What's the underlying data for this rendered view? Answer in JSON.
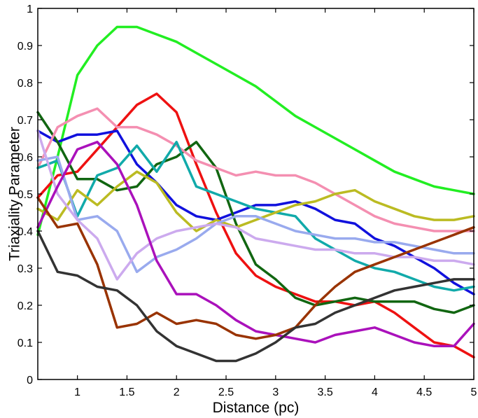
{
  "chart_data": {
    "type": "line",
    "title": "",
    "xlabel": "Distance (pc)",
    "ylabel": "Triaxiality Parameter",
    "xlim": [
      0.6,
      5
    ],
    "ylim": [
      0,
      1
    ],
    "grid": false,
    "x_ticks": [
      1,
      1.5,
      2,
      2.5,
      3,
      3.5,
      4,
      4.5,
      5
    ],
    "x_tick_labels": [
      "1",
      "1.5",
      "2",
      "2.5",
      "3",
      "3.5",
      "4",
      "4.5",
      "5"
    ],
    "y_ticks": [
      0,
      0.1,
      0.2,
      0.3,
      0.4,
      0.5,
      0.6,
      0.7,
      0.8,
      0.9,
      1
    ],
    "y_tick_labels": [
      "0",
      "0.1",
      "0.2",
      "0.3",
      "0.4",
      "0.5",
      "0.6",
      "0.7",
      "0.8",
      "0.9",
      "1"
    ],
    "x": [
      0.6,
      0.8,
      1.0,
      1.2,
      1.4,
      1.6,
      1.8,
      2.0,
      2.2,
      2.4,
      2.6,
      2.8,
      3.0,
      3.2,
      3.4,
      3.6,
      3.8,
      4.0,
      4.2,
      4.4,
      4.6,
      4.8,
      5.0
    ],
    "series": [
      {
        "name": "green",
        "color": "#22ee22",
        "values": [
          0.39,
          0.6,
          0.82,
          0.9,
          0.95,
          0.95,
          0.93,
          0.91,
          0.88,
          0.85,
          0.82,
          0.79,
          0.75,
          0.71,
          0.68,
          0.65,
          0.62,
          0.59,
          0.56,
          0.54,
          0.52,
          0.51,
          0.5
        ]
      },
      {
        "name": "red",
        "color": "#ee1111",
        "values": [
          0.49,
          0.55,
          0.56,
          0.62,
          0.68,
          0.74,
          0.77,
          0.72,
          0.58,
          0.45,
          0.34,
          0.28,
          0.25,
          0.23,
          0.21,
          0.21,
          0.2,
          0.21,
          0.18,
          0.14,
          0.1,
          0.09,
          0.06
        ]
      },
      {
        "name": "blue",
        "color": "#1111dd",
        "values": [
          0.67,
          0.64,
          0.66,
          0.66,
          0.67,
          0.58,
          0.53,
          0.47,
          0.44,
          0.43,
          0.45,
          0.47,
          0.47,
          0.48,
          0.46,
          0.43,
          0.42,
          0.38,
          0.36,
          0.33,
          0.3,
          0.26,
          0.23
        ]
      },
      {
        "name": "dark green",
        "color": "#116611",
        "values": [
          0.72,
          0.64,
          0.54,
          0.54,
          0.51,
          0.52,
          0.58,
          0.6,
          0.64,
          0.57,
          0.42,
          0.31,
          0.27,
          0.22,
          0.2,
          0.21,
          0.22,
          0.21,
          0.21,
          0.21,
          0.19,
          0.18,
          0.2
        ]
      },
      {
        "name": "pink",
        "color": "#f48fb1",
        "values": [
          0.57,
          0.68,
          0.71,
          0.73,
          0.68,
          0.68,
          0.66,
          0.63,
          0.59,
          0.57,
          0.55,
          0.56,
          0.55,
          0.55,
          0.53,
          0.5,
          0.47,
          0.44,
          0.42,
          0.41,
          0.4,
          0.4,
          0.4
        ]
      },
      {
        "name": "cyan",
        "color": "#11aaaa",
        "values": [
          0.57,
          0.59,
          0.44,
          0.55,
          0.57,
          0.63,
          0.56,
          0.64,
          0.52,
          0.5,
          0.48,
          0.46,
          0.45,
          0.44,
          0.38,
          0.35,
          0.32,
          0.3,
          0.29,
          0.27,
          0.25,
          0.24,
          0.25
        ]
      },
      {
        "name": "olive",
        "color": "#bbbb22",
        "values": [
          0.46,
          0.43,
          0.51,
          0.47,
          0.52,
          0.56,
          0.53,
          0.45,
          0.4,
          0.43,
          0.41,
          0.43,
          0.45,
          0.47,
          0.48,
          0.5,
          0.51,
          0.48,
          0.46,
          0.44,
          0.43,
          0.43,
          0.44
        ]
      },
      {
        "name": "lavender",
        "color": "#99aaee",
        "values": [
          0.59,
          0.6,
          0.43,
          0.44,
          0.4,
          0.29,
          0.33,
          0.35,
          0.38,
          0.42,
          0.44,
          0.44,
          0.42,
          0.4,
          0.39,
          0.38,
          0.38,
          0.37,
          0.37,
          0.36,
          0.35,
          0.34,
          0.34
        ]
      },
      {
        "name": "light purple",
        "color": "#ccaaee",
        "values": [
          0.67,
          0.5,
          0.43,
          0.38,
          0.27,
          0.34,
          0.38,
          0.4,
          0.41,
          0.42,
          0.41,
          0.38,
          0.37,
          0.36,
          0.35,
          0.35,
          0.34,
          0.34,
          0.33,
          0.33,
          0.32,
          0.32,
          0.31
        ]
      },
      {
        "name": "magenta",
        "color": "#aa11bb",
        "values": [
          0.41,
          0.52,
          0.62,
          0.64,
          0.58,
          0.47,
          0.32,
          0.23,
          0.23,
          0.2,
          0.16,
          0.13,
          0.12,
          0.11,
          0.1,
          0.12,
          0.13,
          0.14,
          0.12,
          0.1,
          0.09,
          0.09,
          0.15
        ]
      },
      {
        "name": "brown",
        "color": "#993300",
        "values": [
          0.49,
          0.41,
          0.42,
          0.31,
          0.14,
          0.15,
          0.18,
          0.15,
          0.16,
          0.15,
          0.12,
          0.11,
          0.12,
          0.14,
          0.2,
          0.25,
          0.29,
          0.31,
          0.33,
          0.35,
          0.37,
          0.39,
          0.41
        ]
      },
      {
        "name": "dark gray",
        "color": "#333333",
        "values": [
          0.4,
          0.29,
          0.28,
          0.25,
          0.24,
          0.2,
          0.13,
          0.09,
          0.07,
          0.05,
          0.05,
          0.07,
          0.1,
          0.14,
          0.15,
          0.18,
          0.2,
          0.22,
          0.24,
          0.25,
          0.26,
          0.27,
          0.27
        ]
      }
    ]
  }
}
